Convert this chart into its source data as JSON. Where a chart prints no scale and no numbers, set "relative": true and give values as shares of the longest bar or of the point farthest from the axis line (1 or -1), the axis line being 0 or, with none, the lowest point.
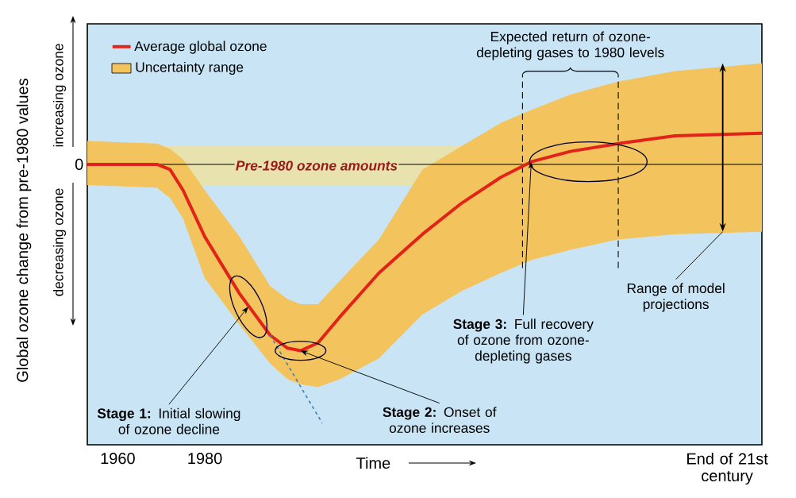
{
  "chart_data": {
    "type": "line",
    "relative": true,
    "xlabel": "Time",
    "ylabel": "Global ozone change from pre-1980 values",
    "xlim": [
      1953,
      2108
    ],
    "xticks": [
      1960,
      1980,
      {
        "value": 2100,
        "label": "End of 21st century"
      }
    ],
    "marker": "none",
    "line_style": "solid",
    "legend": "top left",
    "series": [
      {
        "name": "Average global ozone",
        "color": "#e2231a",
        "x": [
          1953,
          1969,
          1972,
          1975,
          1980,
          1988,
          1995,
          1999,
          2002,
          2006,
          2011,
          2020,
          2030,
          2039,
          2048,
          2055,
          2064,
          2075,
          2088,
          2108
        ],
        "values": [
          0,
          0,
          -0.02,
          -0.1,
          -0.28,
          -0.5,
          -0.66,
          -0.71,
          -0.72,
          -0.69,
          -0.59,
          -0.42,
          -0.27,
          -0.15,
          -0.05,
          0.01,
          0.05,
          0.08,
          0.11,
          0.12
        ],
        "upper": [
          0.09,
          0.08,
          0.06,
          0.02,
          -0.1,
          -0.28,
          -0.47,
          -0.52,
          -0.54,
          -0.54,
          -0.45,
          -0.29,
          -0.02,
          0.07,
          0.16,
          0.21,
          0.27,
          0.32,
          0.36,
          0.39
        ],
        "lower": [
          -0.08,
          -0.09,
          -0.13,
          -0.21,
          -0.44,
          -0.62,
          -0.77,
          -0.83,
          -0.85,
          -0.86,
          -0.83,
          -0.75,
          -0.58,
          -0.49,
          -0.42,
          -0.37,
          -0.33,
          -0.29,
          -0.27,
          -0.26
        ]
      },
      {
        "color": "#3d7fb5",
        "line_style": "dashed",
        "x": [
          1995,
          2007
        ],
        "values": [
          -0.66,
          -1
        ]
      }
    ],
    "ref_lines": [
      {
        "axis": "y",
        "value": 0,
        "label": "0"
      },
      {
        "axis": "x",
        "value": 2053,
        "label": "Expected return of ozone-depleting gases to 1980 levels",
        "line_style": "dashed"
      },
      {
        "axis": "x",
        "value": 2075,
        "line_style": "dashed"
      }
    ],
    "bands": [
      {
        "axis": "y",
        "from": -0.08,
        "to": 0.07,
        "label": "Pre-1980 ozone amounts",
        "color": "#e8e2ae"
      }
    ],
    "annotations": [
      {
        "text": "**Stage 1:** Initial slowing of ozone decline",
        "x": 1990,
        "y": -0.55
      },
      {
        "text": "**Stage 2:** Onset of ozone increases",
        "x": 2002,
        "y": -0.72
      },
      {
        "text": "**Stage 3:** Full recovery of ozone from ozone-depleting gases",
        "x": 2055,
        "y": 0.01
      },
      {
        "text": "Range of model projections",
        "x": 2099,
        "y": -0.26
      },
      "Uncertainty range",
      "increasing ozone",
      "decreasing ozone"
    ]
  }
}
